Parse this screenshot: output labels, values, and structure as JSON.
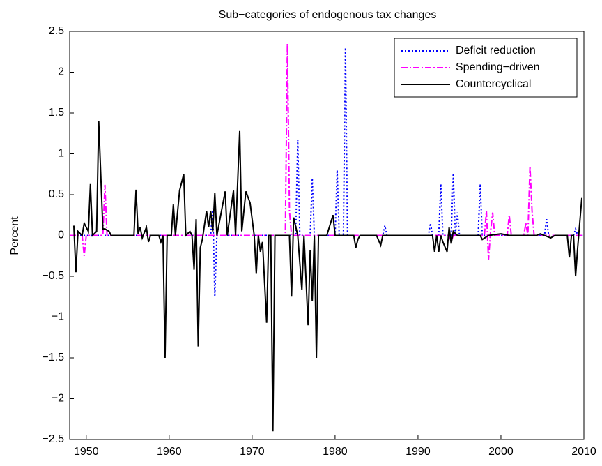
{
  "chart_data": {
    "type": "line",
    "title": "Sub−categories of endogenous tax changes",
    "y_label": "Percent",
    "xlim": [
      1948,
      2010
    ],
    "xticks": [
      1950,
      1960,
      1970,
      1980,
      1990,
      2000,
      2010
    ],
    "ylim": [
      -2.5,
      2.5
    ],
    "yticks": [
      {
        "value": -2.5,
        "label": "−2.5"
      },
      {
        "value": -2,
        "label": "−2"
      },
      {
        "value": -1.5,
        "label": "−1.5"
      },
      {
        "value": -1,
        "label": "−1"
      },
      {
        "value": -0.5,
        "label": "−0.5"
      },
      0,
      0.5,
      1,
      1.5,
      2,
      2.5
    ],
    "legend": "upper right",
    "series": [
      {
        "name": "Deficit reduction",
        "color": "#0000ff",
        "linestyle": "dotted",
        "x": [
          1948,
          1965,
          1965.25,
          1965.5,
          1965.75,
          1975.25,
          1975.5,
          1975.75,
          1977,
          1977.25,
          1977.5,
          1980,
          1980.25,
          1980.5,
          1981,
          1981.25,
          1981.5,
          1985.75,
          1986,
          1986.25,
          1991.25,
          1991.5,
          1991.75,
          1992.5,
          1992.75,
          1993,
          1994,
          1994.25,
          1994.5,
          1994.75,
          1995,
          1995.25,
          1997.25,
          1997.5,
          1997.75,
          2005.25,
          2005.5,
          2005.75,
          2008.75,
          2009,
          2009.25,
          2010
        ],
        "values": [
          0,
          0,
          0.33,
          -0.75,
          0,
          0,
          1.17,
          0,
          0,
          0.7,
          0,
          0,
          0.8,
          0,
          0,
          2.3,
          0,
          0,
          0.12,
          0,
          0,
          0.15,
          0,
          0,
          0.63,
          0,
          0,
          0.76,
          0,
          0.28,
          0,
          0,
          0,
          0.63,
          0,
          0,
          0.2,
          0,
          0,
          0.08,
          0,
          0
        ]
      },
      {
        "name": "Spending−driven",
        "color": "#ff00ff",
        "linestyle": "dashdot",
        "x": [
          1948,
          1949.5,
          1949.75,
          1950,
          1952,
          1952.25,
          1952.5,
          1974,
          1974.25,
          1974.5,
          1974.75,
          1993.75,
          1994,
          1994.25,
          1998,
          1998.25,
          1998.5,
          1998.75,
          1999,
          1999.25,
          2000.75,
          2001,
          2001.25,
          2002.75,
          2003,
          2003.25,
          2003.5,
          2003.75,
          2004,
          2010
        ],
        "values": [
          0,
          0,
          -0.25,
          0,
          0,
          0.62,
          0,
          0,
          2.35,
          0.3,
          0,
          0,
          -0.08,
          0,
          0,
          0.3,
          -0.3,
          0.05,
          0.28,
          0,
          0,
          0.25,
          0,
          0,
          0.15,
          0,
          0.85,
          0.3,
          0,
          0
        ]
      },
      {
        "name": "Countercyclical",
        "color": "#000000",
        "linestyle": "solid",
        "x": [
          1948.5,
          1948.75,
          1949,
          1949.5,
          1949.75,
          1950.25,
          1950.5,
          1950.75,
          1951.25,
          1951.5,
          1952,
          1952.25,
          1952.75,
          1953,
          1955.75,
          1956,
          1956.25,
          1956.5,
          1956.75,
          1957.25,
          1957.5,
          1957.75,
          1958.75,
          1959,
          1959.25,
          1959.5,
          1959.75,
          1960.25,
          1960.5,
          1960.75,
          1961.25,
          1961.75,
          1962,
          1962.5,
          1962.75,
          1963,
          1963.25,
          1963.5,
          1963.75,
          1964,
          1964.5,
          1964.75,
          1965,
          1965.25,
          1965.5,
          1965.75,
          1966.75,
          1967,
          1967.75,
          1968,
          1968.5,
          1968.75,
          1969.25,
          1969.75,
          1970.25,
          1970.5,
          1970.75,
          1971,
          1971.25,
          1971.75,
          1972,
          1972.25,
          1972.5,
          1972.75,
          1974.5,
          1974.75,
          1975,
          1975.5,
          1976,
          1976.25,
          1976.75,
          1977,
          1977.25,
          1977.5,
          1977.75,
          1978,
          1979,
          1979.75,
          1980,
          1982.25,
          1982.5,
          1982.75,
          1983,
          1985,
          1985.5,
          1985.75,
          1991.75,
          1992,
          1992.25,
          1992.5,
          1992.75,
          1993,
          1993.5,
          1993.75,
          1994,
          1994.25,
          1994.75,
          1997.5,
          1997.75,
          1998.5,
          2000,
          2001,
          2004.25,
          2004.75,
          2006,
          2006.5,
          2008,
          2008.25,
          2008.5,
          2008.75,
          2009,
          2009.25,
          2009.75
        ],
        "values": [
          0.12,
          -0.45,
          0.05,
          0,
          0.15,
          0.05,
          0.63,
          0,
          0.05,
          1.4,
          0.08,
          0.08,
          0.05,
          0,
          0,
          0.56,
          0.02,
          0.1,
          -0.03,
          0.1,
          -0.08,
          0,
          0,
          -0.08,
          0,
          -1.5,
          0,
          0,
          0.38,
          0,
          0.55,
          0.75,
          0,
          0.05,
          0,
          -0.42,
          0.2,
          -1.36,
          -0.15,
          -0.05,
          0.3,
          0.1,
          0.3,
          0.05,
          0.52,
          0,
          0.54,
          0,
          0.55,
          0,
          1.28,
          0.05,
          0.54,
          0.4,
          0,
          -0.47,
          0,
          -0.2,
          -0.08,
          -1.07,
          0,
          0,
          -2.4,
          0,
          0,
          -0.75,
          0.22,
          0,
          -0.67,
          0,
          -1.1,
          -0.18,
          -0.8,
          0,
          -1.5,
          0,
          0,
          0.25,
          0,
          0,
          -0.15,
          -0.05,
          0,
          0,
          -0.12,
          0,
          0,
          -0.2,
          0,
          -0.2,
          0,
          -0.08,
          -0.2,
          0.1,
          -0.1,
          0.05,
          0,
          0,
          -0.05,
          0,
          0.02,
          0,
          0,
          0.02,
          -0.03,
          0,
          0,
          -0.27,
          0,
          0,
          -0.5,
          -0.15,
          0.46
        ]
      }
    ]
  }
}
